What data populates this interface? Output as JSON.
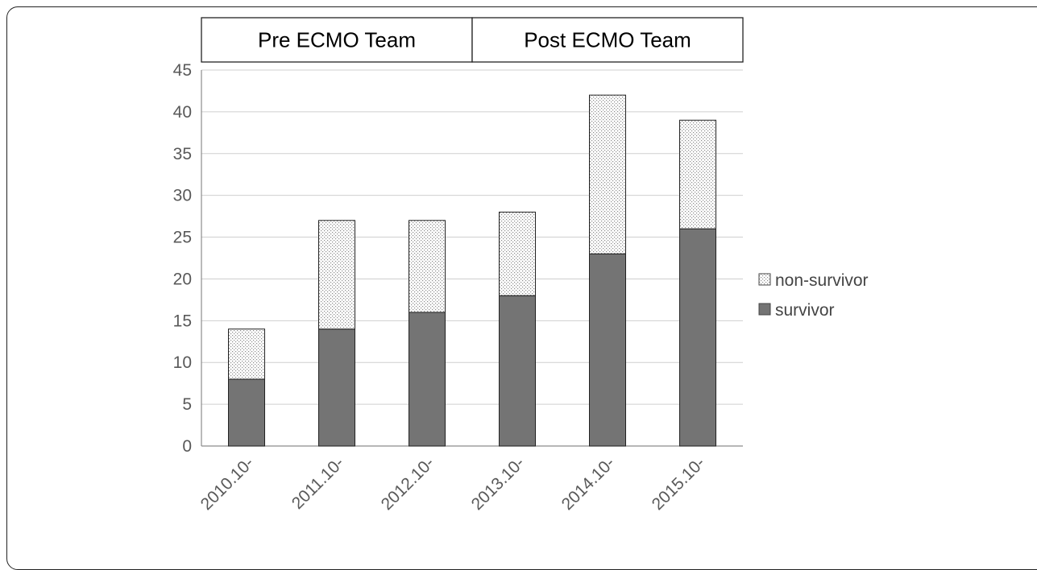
{
  "chart_data": {
    "type": "bar",
    "stacked": true,
    "categories": [
      "2010.10-",
      "2011.10-",
      "2012.10-",
      "2013.10-",
      "2014.10-",
      "2015.10-"
    ],
    "series": [
      {
        "name": "survivor",
        "values": [
          8,
          14,
          16,
          18,
          23,
          26
        ],
        "color": "#747474",
        "pattern": "solid"
      },
      {
        "name": "non-survivor",
        "values": [
          6,
          13,
          11,
          10,
          19,
          13
        ],
        "color": "#ffffff",
        "pattern": "dotted"
      }
    ],
    "ylim": [
      0,
      45
    ],
    "yticks": [
      0,
      5,
      10,
      15,
      20,
      25,
      30,
      35,
      40,
      45
    ],
    "grid": true,
    "legend": {
      "placement": "right",
      "order": [
        "non-survivor",
        "survivor"
      ]
    },
    "header_groups": [
      {
        "label": "Pre ECMO Team",
        "from": "2010.10-",
        "to": "2012.10-"
      },
      {
        "label": "Post ECMO Team",
        "from": "2013.10-",
        "to": "2015.10-"
      }
    ],
    "title": "",
    "xlabel": "",
    "ylabel": ""
  }
}
